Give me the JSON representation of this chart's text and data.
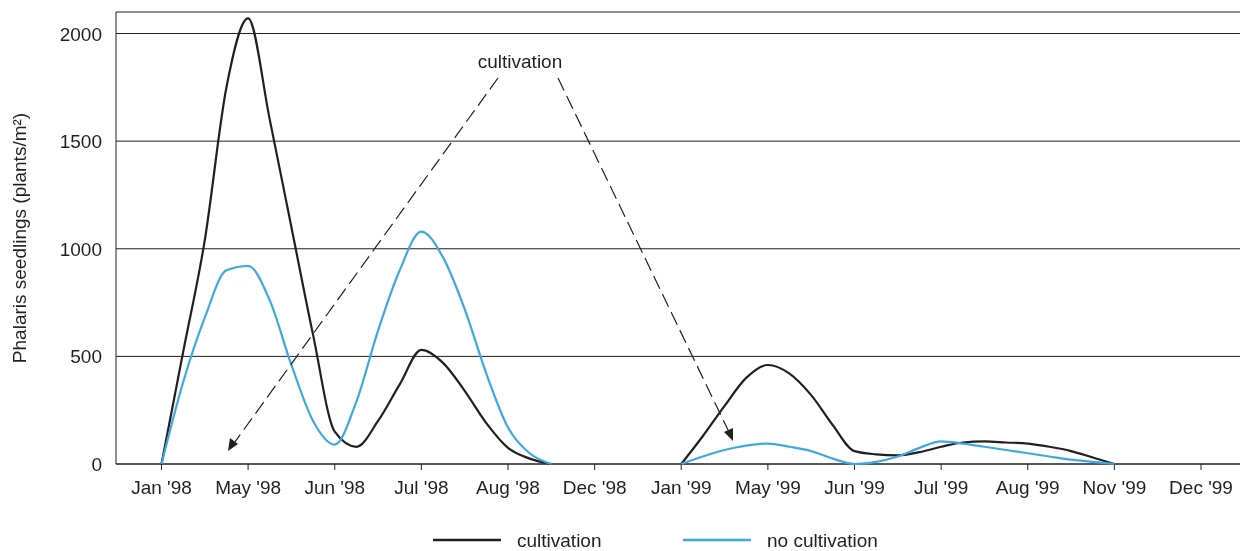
{
  "chart_data": {
    "type": "line",
    "ylabel": "Phalaris seedlings (plants/m²)",
    "categories": [
      "Jan '98",
      null,
      null,
      null,
      "May '98",
      null,
      null,
      null,
      "Jun '98",
      null,
      null,
      null,
      "Jul '98",
      null,
      null,
      null,
      "Aug '98",
      null,
      null,
      null,
      "Dec '98",
      null,
      null,
      null,
      "Jan '99",
      null,
      null,
      null,
      "May '99",
      null,
      null,
      null,
      "Jun '99",
      null,
      null,
      null,
      "Jul '99",
      null,
      null,
      null,
      "Aug '99",
      null,
      null,
      null,
      "Nov '99",
      null,
      null,
      null,
      "Dec '99"
    ],
    "ylim": [
      0,
      2100
    ],
    "yticks": [
      0,
      500,
      1000,
      1500,
      2000
    ],
    "grid": "y",
    "legend": "bottom",
    "marker": "none",
    "line_style": "solid",
    "annotations": [
      "cultivation"
    ],
    "series": [
      {
        "name": "cultivation",
        "color": "#231f20",
        "values": [
          0,
          520,
          1040,
          1750,
          2070,
          1600,
          1100,
          600,
          150,
          80,
          200,
          370,
          530,
          470,
          340,
          190,
          75,
          25,
          0,
          null,
          null,
          null,
          null,
          null,
          0,
          130,
          270,
          400,
          460,
          420,
          320,
          180,
          60,
          45,
          40,
          55,
          80,
          100,
          105,
          100,
          95,
          80,
          60,
          30,
          0,
          null,
          null,
          null,
          null
        ]
      },
      {
        "name": "no cultivation",
        "color": "#3ea8e0",
        "values": [
          0,
          380,
          680,
          900,
          920,
          760,
          460,
          200,
          90,
          290,
          620,
          900,
          1080,
          960,
          720,
          420,
          170,
          50,
          0,
          null,
          null,
          null,
          null,
          null,
          0,
          35,
          65,
          85,
          95,
          80,
          60,
          25,
          0,
          10,
          35,
          75,
          105,
          95,
          80,
          65,
          50,
          35,
          20,
          10,
          0,
          null,
          null,
          null,
          null
        ]
      }
    ]
  }
}
